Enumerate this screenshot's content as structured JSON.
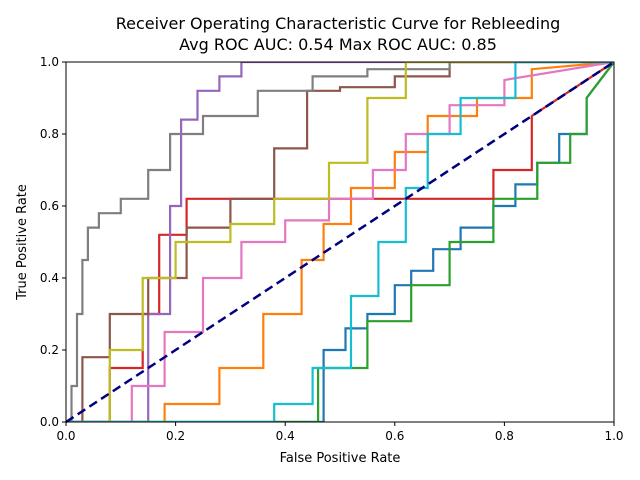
{
  "chart_data": {
    "type": "line",
    "title": "Receiver Operating Characteristic Curve for Rebleeding",
    "subtitle": "Avg ROC AUC: 0.54  Max ROC AUC: 0.85",
    "xlabel": "False Positive Rate",
    "ylabel": "True Positive Rate",
    "xlim": [
      0,
      1
    ],
    "ylim": [
      0,
      1
    ],
    "xticks": [
      "0.0",
      "0.2",
      "0.4",
      "0.6",
      "0.8",
      "1.0"
    ],
    "yticks": [
      "0.0",
      "0.2",
      "0.4",
      "0.6",
      "0.8",
      "1.0"
    ],
    "grid": false,
    "legend": "none",
    "reference_line": {
      "x": [
        0,
        1
      ],
      "y": [
        0,
        1
      ],
      "color": "#000080",
      "style": "dashed"
    },
    "series": [
      {
        "color": "#1f77b4",
        "x": [
          0,
          0.47,
          0.47,
          0.51,
          0.51,
          0.55,
          0.55,
          0.6,
          0.6,
          0.63,
          0.63,
          0.67,
          0.67,
          0.72,
          0.72,
          0.78,
          0.78,
          0.82,
          0.82,
          0.86,
          0.86,
          0.9,
          0.9,
          0.95,
          0.95,
          1.0
        ],
        "y": [
          0,
          0,
          0.2,
          0.2,
          0.26,
          0.26,
          0.3,
          0.3,
          0.38,
          0.38,
          0.42,
          0.42,
          0.48,
          0.48,
          0.54,
          0.54,
          0.6,
          0.6,
          0.66,
          0.66,
          0.72,
          0.72,
          0.8,
          0.8,
          0.9,
          1.0
        ]
      },
      {
        "color": "#ff7f0e",
        "x": [
          0,
          0.18,
          0.18,
          0.28,
          0.28,
          0.36,
          0.36,
          0.43,
          0.43,
          0.47,
          0.47,
          0.52,
          0.52,
          0.6,
          0.6,
          0.66,
          0.66,
          0.75,
          0.75,
          0.85,
          0.85,
          1.0
        ],
        "y": [
          0,
          0,
          0.05,
          0.05,
          0.15,
          0.15,
          0.3,
          0.3,
          0.45,
          0.45,
          0.55,
          0.55,
          0.65,
          0.65,
          0.75,
          0.75,
          0.85,
          0.85,
          0.9,
          0.9,
          0.98,
          1.0
        ]
      },
      {
        "color": "#2ca02c",
        "x": [
          0,
          0.46,
          0.46,
          0.55,
          0.55,
          0.63,
          0.63,
          0.7,
          0.7,
          0.78,
          0.78,
          0.86,
          0.86,
          0.92,
          0.92,
          0.95,
          0.95,
          1.0
        ],
        "y": [
          0,
          0,
          0.15,
          0.15,
          0.28,
          0.28,
          0.38,
          0.38,
          0.5,
          0.5,
          0.62,
          0.62,
          0.72,
          0.72,
          0.8,
          0.8,
          0.9,
          1.0
        ]
      },
      {
        "color": "#d62728",
        "x": [
          0,
          0.08,
          0.08,
          0.14,
          0.14,
          0.17,
          0.17,
          0.22,
          0.22,
          0.3,
          0.3,
          0.4,
          0.4,
          0.5,
          0.5,
          0.62,
          0.62,
          0.78,
          0.78,
          0.85,
          0.85,
          1.0
        ],
        "y": [
          0,
          0,
          0.15,
          0.15,
          0.3,
          0.3,
          0.52,
          0.52,
          0.62,
          0.62,
          0.62,
          0.62,
          0.62,
          0.62,
          0.62,
          0.62,
          0.62,
          0.62,
          0.7,
          0.7,
          0.85,
          1.0
        ]
      },
      {
        "color": "#9467bd",
        "x": [
          0,
          0.15,
          0.15,
          0.19,
          0.19,
          0.21,
          0.21,
          0.24,
          0.24,
          0.28,
          0.28,
          0.32,
          0.32,
          0.45,
          0.45,
          0.6,
          0.6,
          0.75,
          0.75,
          1.0
        ],
        "y": [
          0,
          0,
          0.3,
          0.3,
          0.6,
          0.6,
          0.84,
          0.84,
          0.92,
          0.92,
          0.96,
          0.96,
          1.0,
          1.0,
          1.0,
          1.0,
          1.0,
          1.0,
          1.0,
          1.0
        ]
      },
      {
        "color": "#8c564b",
        "x": [
          0,
          0.03,
          0.03,
          0.08,
          0.08,
          0.15,
          0.15,
          0.22,
          0.22,
          0.3,
          0.3,
          0.38,
          0.38,
          0.44,
          0.44,
          0.5,
          0.5,
          0.6,
          0.6,
          0.7,
          0.7,
          0.8,
          0.8,
          1.0
        ],
        "y": [
          0,
          0,
          0.18,
          0.18,
          0.3,
          0.3,
          0.4,
          0.4,
          0.54,
          0.54,
          0.62,
          0.62,
          0.76,
          0.76,
          0.92,
          0.92,
          0.93,
          0.93,
          0.96,
          0.96,
          1.0,
          1.0,
          1.0,
          1.0
        ]
      },
      {
        "color": "#e377c2",
        "x": [
          0,
          0.12,
          0.12,
          0.18,
          0.18,
          0.25,
          0.25,
          0.32,
          0.32,
          0.4,
          0.4,
          0.48,
          0.48,
          0.56,
          0.56,
          0.62,
          0.62,
          0.7,
          0.7,
          0.8,
          0.8,
          1.0
        ],
        "y": [
          0,
          0,
          0.1,
          0.1,
          0.25,
          0.25,
          0.4,
          0.4,
          0.5,
          0.5,
          0.56,
          0.56,
          0.62,
          0.62,
          0.7,
          0.7,
          0.8,
          0.8,
          0.88,
          0.88,
          0.95,
          1.0
        ]
      },
      {
        "color": "#7f7f7f",
        "x": [
          0,
          0.01,
          0.01,
          0.02,
          0.02,
          0.03,
          0.03,
          0.04,
          0.04,
          0.06,
          0.06,
          0.1,
          0.1,
          0.15,
          0.15,
          0.19,
          0.19,
          0.25,
          0.25,
          0.35,
          0.35,
          0.45,
          0.45,
          0.55,
          0.55,
          0.7,
          0.7,
          1.0
        ],
        "y": [
          0,
          0,
          0.1,
          0.1,
          0.3,
          0.3,
          0.45,
          0.45,
          0.54,
          0.54,
          0.58,
          0.58,
          0.62,
          0.62,
          0.7,
          0.7,
          0.8,
          0.8,
          0.85,
          0.85,
          0.92,
          0.92,
          0.96,
          0.96,
          0.98,
          0.98,
          1.0,
          1.0
        ]
      },
      {
        "color": "#bcbd22",
        "x": [
          0,
          0.08,
          0.08,
          0.14,
          0.14,
          0.2,
          0.2,
          0.3,
          0.3,
          0.38,
          0.38,
          0.48,
          0.48,
          0.55,
          0.55,
          0.62,
          0.62,
          0.68,
          0.68,
          1.0
        ],
        "y": [
          0,
          0,
          0.2,
          0.2,
          0.4,
          0.4,
          0.5,
          0.5,
          0.55,
          0.55,
          0.62,
          0.62,
          0.72,
          0.72,
          0.9,
          0.9,
          1.0,
          1.0,
          1.0,
          1.0
        ]
      },
      {
        "color": "#17becf",
        "x": [
          0,
          0.38,
          0.38,
          0.45,
          0.45,
          0.52,
          0.52,
          0.57,
          0.57,
          0.62,
          0.62,
          0.66,
          0.66,
          0.72,
          0.72,
          0.82,
          0.82,
          0.9,
          0.9,
          1.0
        ],
        "y": [
          0,
          0,
          0.05,
          0.05,
          0.15,
          0.15,
          0.35,
          0.35,
          0.5,
          0.5,
          0.65,
          0.65,
          0.8,
          0.8,
          0.9,
          0.9,
          1.0,
          1.0,
          1.0,
          1.0
        ]
      }
    ]
  }
}
